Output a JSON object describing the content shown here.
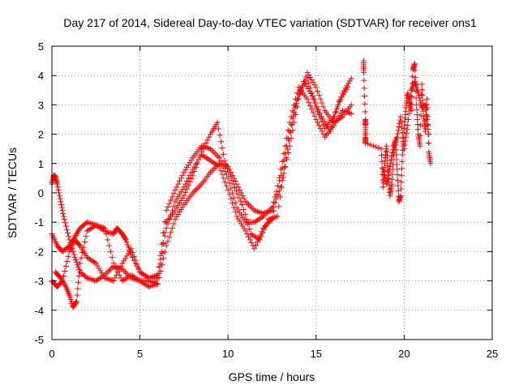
{
  "chart_data": {
    "type": "scatter",
    "title": "Day 217 of 2014, Sidereal Day-to-day VTEC variation (SDTVAR) for receiver ons1",
    "xlabel": "GPS time / hours",
    "ylabel": "SDTVAR / TECUs",
    "xlim": [
      0,
      25
    ],
    "ylim": [
      -5,
      5
    ],
    "xticks": [
      0,
      5,
      10,
      15,
      20,
      25
    ],
    "yticks": [
      -5,
      -4,
      -3,
      -2,
      -1,
      0,
      1,
      2,
      3,
      4,
      5
    ],
    "grid": true,
    "marker": "plus",
    "color": "#ff0000",
    "series": [
      {
        "x": [
          0.0,
          0.1,
          0.2,
          0.3,
          0.5,
          0.7,
          1.0,
          1.3,
          1.6,
          2.0,
          2.5,
          3.0,
          3.5,
          4.0,
          4.5,
          5.0,
          5.5,
          6.0,
          6.5,
          7.0,
          7.5,
          8.0,
          8.5,
          9.0,
          9.5,
          10.0,
          10.5,
          11.0,
          11.5,
          12.0,
          12.5,
          13.0,
          13.5,
          14.0,
          14.5,
          15.0,
          15.5,
          16.0,
          16.5,
          17.0
        ],
        "y": [
          0.3,
          0.6,
          0.55,
          0.3,
          -0.3,
          -0.9,
          -1.6,
          -2.2,
          -2.7,
          -2.9,
          -3.0,
          -2.8,
          -2.5,
          -2.6,
          -2.9,
          -3.0,
          -3.0,
          -3.1,
          -1.8,
          -0.9,
          -0.4,
          0.0,
          0.3,
          0.7,
          1.0,
          0.9,
          0.3,
          -0.3,
          -0.6,
          -0.7,
          -0.6,
          0.2,
          1.6,
          3.2,
          4.1,
          3.6,
          2.8,
          2.4,
          2.6,
          3.0
        ]
      },
      {
        "x": [
          0.0,
          0.3,
          0.6,
          1.0,
          1.3,
          1.6,
          2.0,
          2.5,
          3.0,
          3.5,
          3.7,
          4.0,
          4.2,
          4.5,
          5.0,
          5.5,
          6.0,
          6.5,
          7.0,
          7.5,
          8.0,
          8.5,
          9.0,
          9.5,
          10.0,
          10.5,
          11.0,
          11.5,
          12.0,
          12.5,
          13.0,
          13.5,
          14.0,
          14.5,
          15.0,
          15.5,
          16.0,
          16.5,
          17.0
        ],
        "y": [
          -1.4,
          -1.8,
          -2.0,
          -1.8,
          -1.5,
          -1.2,
          -1.0,
          -1.1,
          -1.3,
          -1.4,
          -1.2,
          -1.4,
          -1.6,
          -2.1,
          -2.7,
          -2.9,
          -2.9,
          -0.6,
          0.1,
          0.7,
          1.2,
          1.6,
          1.5,
          1.2,
          0.5,
          -0.5,
          -1.0,
          -1.0,
          -0.8,
          -0.5,
          0.6,
          2.1,
          3.4,
          3.9,
          2.9,
          2.2,
          2.6,
          3.4,
          3.9
        ]
      },
      {
        "x": [
          0.0,
          0.3,
          0.6,
          1.0,
          1.3,
          1.6,
          2.0,
          2.5,
          3.0,
          3.5,
          4.0,
          4.5,
          5.0,
          5.5,
          6.0,
          6.5,
          7.0,
          7.5,
          8.0,
          8.5,
          9.0,
          9.5,
          10.0,
          10.5,
          11.0,
          11.5,
          12.0,
          12.5,
          13.0,
          13.5,
          14.0,
          14.5,
          15.0,
          15.5,
          16.0,
          16.5,
          17.0
        ],
        "y": [
          -3.0,
          -3.2,
          -3.0,
          -2.0,
          -1.6,
          -1.8,
          -2.2,
          -2.4,
          -2.9,
          -3.0,
          -2.4,
          -1.9,
          -2.7,
          -2.9,
          -2.8,
          -1.2,
          -0.3,
          0.2,
          0.8,
          1.3,
          1.1,
          0.9,
          0.1,
          -0.8,
          -1.3,
          -1.9,
          -1.2,
          -0.9,
          0.8,
          2.4,
          3.6,
          3.2,
          2.5,
          1.9,
          2.3,
          2.8,
          2.7
        ]
      },
      {
        "x": [
          0.2,
          0.5,
          0.8,
          1.0,
          1.2,
          1.4,
          1.6,
          2.0,
          2.5,
          3.0,
          3.5,
          4.0,
          4.5,
          5.0,
          5.5,
          6.0,
          6.5,
          7.0,
          7.5,
          8.0,
          8.5,
          9.0,
          9.4,
          9.8,
          10.3,
          10.8,
          11.3,
          11.8,
          12.3,
          12.8,
          13.3,
          13.8,
          14.3,
          14.8,
          15.3,
          15.8,
          16.3,
          16.8
        ],
        "y": [
          -2.7,
          -2.9,
          -3.2,
          -3.5,
          -3.9,
          -3.7,
          -2.4,
          -1.3,
          -1.1,
          -1.2,
          -2.4,
          -3.0,
          -2.8,
          -3.0,
          -3.2,
          -3.1,
          -1.0,
          -0.6,
          -0.1,
          0.6,
          1.4,
          2.0,
          2.4,
          1.1,
          0.3,
          -0.4,
          -1.4,
          -1.6,
          -0.9,
          -0.8,
          1.2,
          2.9,
          3.8,
          3.3,
          2.6,
          2.1,
          3.1,
          3.6
        ]
      },
      {
        "x": [
          17.7,
          17.7,
          17.8,
          17.8,
          17.8,
          17.8,
          18.7,
          18.8,
          18.9,
          19.0,
          19.1,
          19.2,
          19.3,
          19.4,
          19.5,
          19.6,
          19.7,
          19.8,
          19.9,
          20.0,
          20.1,
          20.2,
          20.3,
          20.4,
          20.5,
          20.6,
          20.7,
          20.8,
          20.9,
          21.0,
          21.1,
          21.2,
          21.3,
          21.4,
          21.5
        ],
        "y": [
          4.5,
          4.1,
          2.5,
          2.3,
          1.9,
          1.7,
          1.5,
          0.2,
          1.0,
          1.6,
          0.6,
          -0.1,
          0.3,
          1.3,
          1.8,
          0.8,
          -0.3,
          -0.1,
          1.3,
          2.2,
          2.9,
          3.4,
          3.1,
          2.8,
          4.2,
          4.4,
          3.0,
          2.0,
          1.6,
          3.7,
          2.6,
          2.1,
          3.2,
          1.4,
          1.0
        ]
      },
      {
        "x": [
          18.8,
          19.0,
          19.2,
          19.4,
          19.6,
          19.8,
          20.0,
          20.2,
          20.4,
          20.6,
          20.8,
          21.0,
          21.2,
          21.4
        ],
        "y": [
          0.8,
          0.3,
          0.9,
          1.6,
          1.9,
          2.6,
          1.5,
          2.3,
          3.5,
          3.8,
          3.4,
          2.9,
          3.0,
          2.0
        ]
      }
    ]
  }
}
